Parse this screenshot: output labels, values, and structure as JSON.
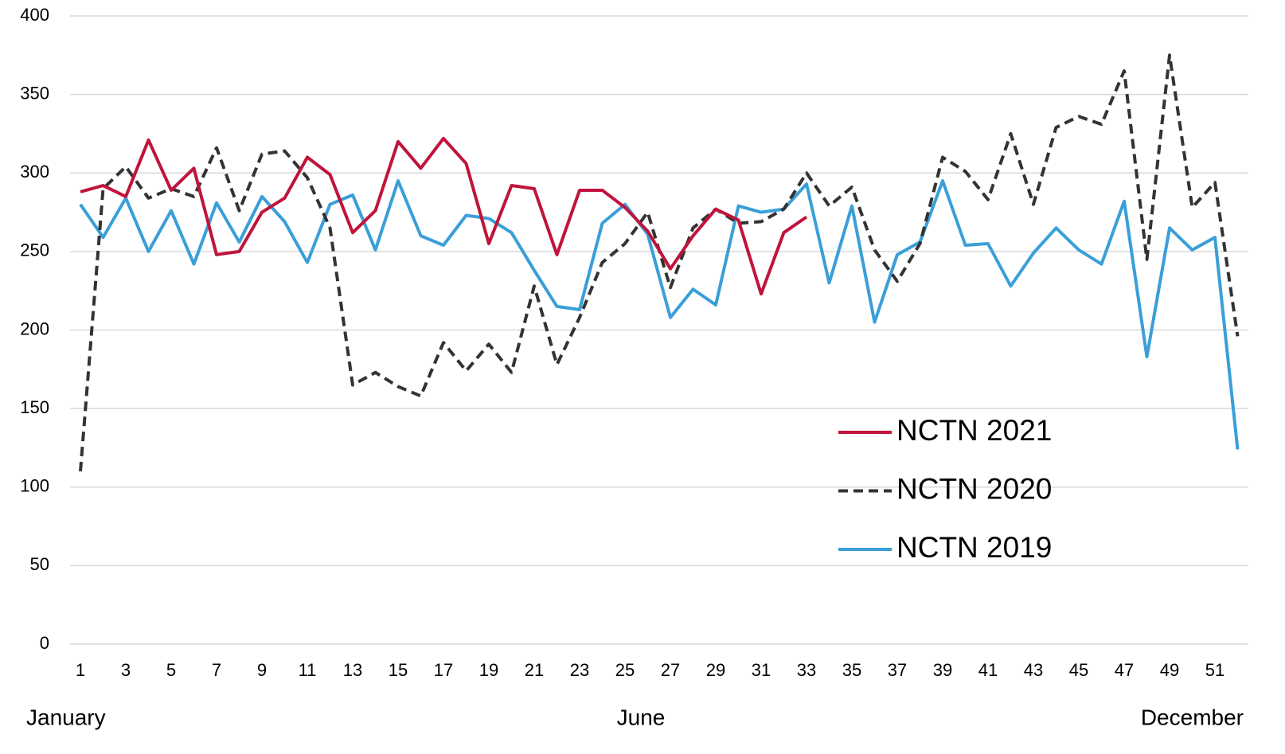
{
  "chart_data": {
    "type": "line",
    "categories": [
      "1",
      null,
      "3",
      null,
      "5",
      null,
      "7",
      null,
      "9",
      null,
      "11",
      null,
      "13",
      null,
      "15",
      null,
      "17",
      null,
      "19",
      null,
      "21",
      null,
      "23",
      null,
      "25",
      null,
      "27",
      null,
      "29",
      null,
      "31",
      null,
      "33",
      null,
      "35",
      null,
      "37",
      null,
      "39",
      null,
      "41",
      null,
      "43",
      null,
      "45",
      null,
      "47",
      null,
      "49",
      null,
      "51",
      null
    ],
    "x_annotations": [
      "January",
      "June",
      "December"
    ],
    "series": [
      {
        "name": "NCTN 2021",
        "color": "#c0143c",
        "style": "solid",
        "values": [
          288,
          292,
          285,
          321,
          289,
          303,
          248,
          250,
          275,
          284,
          310,
          299,
          262,
          276,
          320,
          303,
          322,
          306,
          255,
          292,
          290,
          248,
          289,
          289,
          278,
          263,
          239,
          260,
          277,
          270,
          223,
          262,
          272,
          null,
          null,
          null,
          null,
          null,
          null,
          null,
          null,
          null,
          null,
          null,
          null,
          null,
          null,
          null,
          null,
          null,
          null,
          null
        ]
      },
      {
        "name": "NCTN 2020",
        "color": "#333333",
        "style": "dashed",
        "values": [
          110,
          290,
          304,
          284,
          290,
          285,
          316,
          276,
          312,
          314,
          297,
          265,
          165,
          173,
          164,
          158,
          192,
          174,
          191,
          173,
          228,
          178,
          208,
          243,
          255,
          275,
          227,
          265,
          277,
          268,
          269,
          277,
          300,
          279,
          291,
          251,
          231,
          255,
          310,
          301,
          283,
          325,
          280,
          329,
          336,
          331,
          365,
          245,
          375,
          278,
          294,
          196
        ]
      },
      {
        "name": "NCTN 2019",
        "color": "#3a9fd8",
        "style": "solid",
        "values": [
          280,
          259,
          284,
          250,
          276,
          242,
          281,
          256,
          285,
          269,
          243,
          280,
          286,
          251,
          295,
          260,
          254,
          273,
          271,
          262,
          238,
          215,
          213,
          268,
          280,
          261,
          208,
          226,
          216,
          279,
          275,
          277,
          293,
          230,
          279,
          205,
          248,
          256,
          295,
          254,
          255,
          228,
          249,
          265,
          251,
          242,
          282,
          183,
          265,
          251,
          259,
          124
        ]
      }
    ],
    "ylim": [
      0,
      400
    ],
    "yticks": [
      0,
      50,
      100,
      150,
      200,
      250,
      300,
      350,
      400
    ],
    "grid": true,
    "legend": "lower right"
  }
}
